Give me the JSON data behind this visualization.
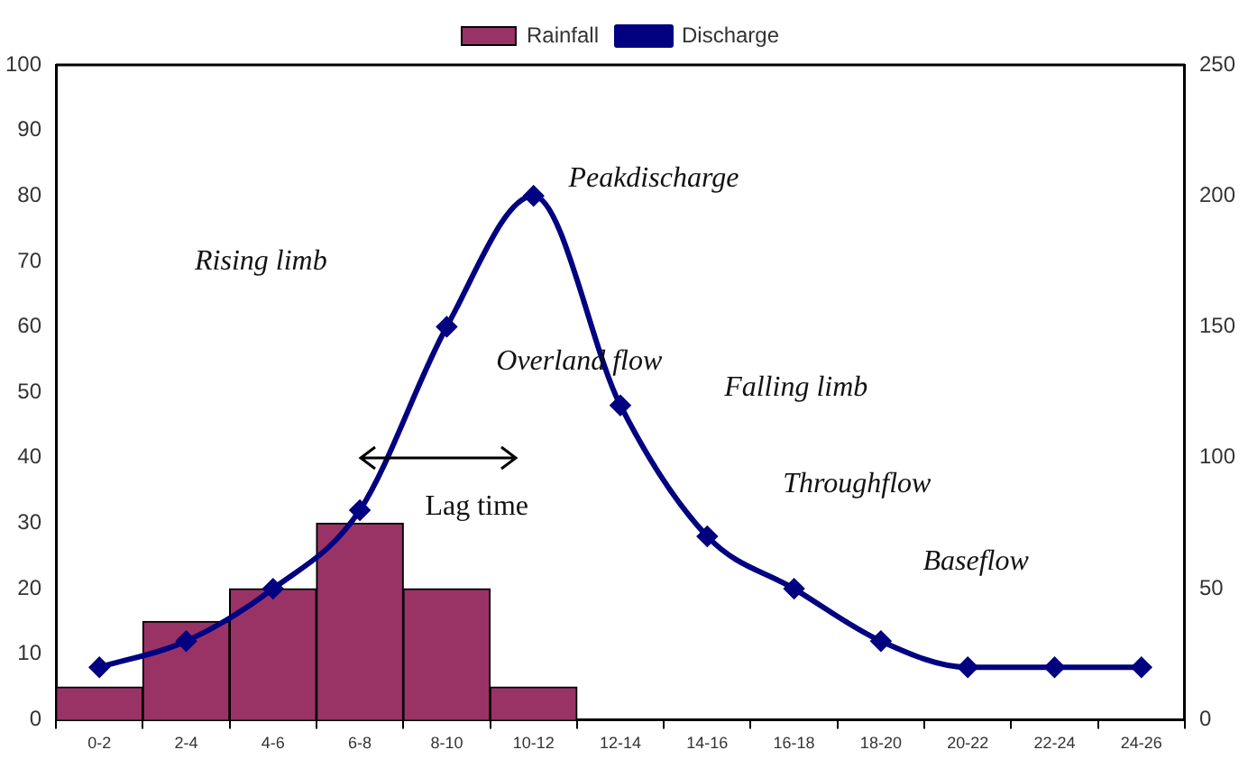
{
  "chart_data": {
    "type": "bar",
    "categories": [
      "0-2",
      "2-4",
      "4-6",
      "6-8",
      "8-10",
      "10-12",
      "12-14",
      "14-16",
      "16-18",
      "18-20",
      "20-22",
      "22-24",
      "24-26"
    ],
    "series": [
      {
        "name": "Rainfall",
        "color": "#993366",
        "values": [
          5,
          15,
          20,
          30,
          20,
          5,
          null,
          null,
          null,
          null,
          null,
          null,
          null
        ]
      },
      {
        "name": "Discharge",
        "type": "line",
        "axis": "y2",
        "color": "#000080",
        "values": [
          20,
          30,
          50,
          80,
          150,
          200,
          120,
          70,
          50,
          30,
          20,
          20,
          20
        ]
      }
    ],
    "ylim": [
      0,
      100
    ],
    "yticks": [
      0,
      10,
      20,
      30,
      40,
      50,
      60,
      70,
      80,
      90,
      100
    ],
    "y2lim": [
      0,
      250
    ],
    "y2ticks": [
      0,
      50,
      100,
      150,
      200,
      250
    ],
    "grid": false,
    "legend": "top",
    "marker": "diamond",
    "line_style": "solid",
    "annotations": [
      "Peakdischarge",
      "Rising limb",
      "Overland flow",
      "Falling limb",
      "Throughflow",
      "Baseflow",
      "Lag time"
    ]
  }
}
